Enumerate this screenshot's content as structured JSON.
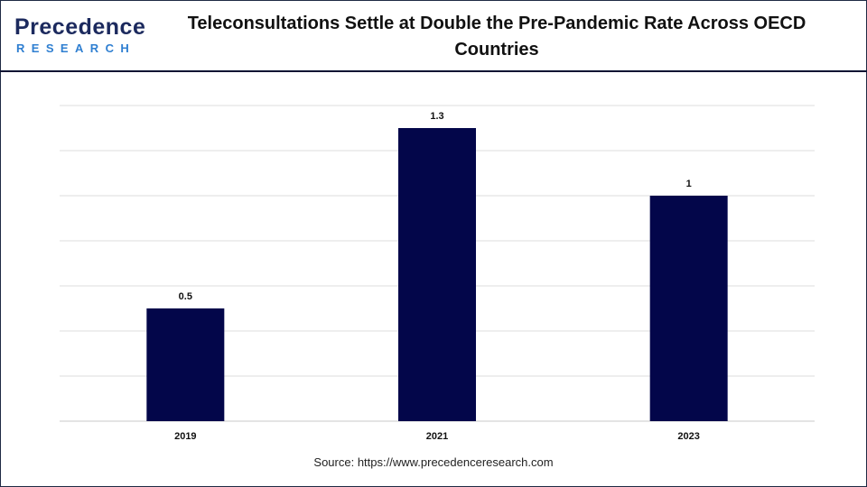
{
  "brand": {
    "logo_top": "Precedence",
    "logo_bottom": "RESEARCH"
  },
  "chart_data": {
    "type": "bar",
    "title": "Teleconsultations Settle at Double the Pre-Pandemic Rate Across OECD Countries",
    "categories": [
      "2019",
      "2021",
      "2023"
    ],
    "values": [
      0.5,
      1.3,
      1
    ],
    "data_labels": [
      "0.5",
      "1.3",
      "1"
    ],
    "xlabel": "",
    "ylabel": "",
    "ylim": [
      0,
      1.4
    ],
    "grid": true,
    "legend": "none",
    "bar_color": "#03064a",
    "source": "Source: https://www.precedenceresearch.com"
  }
}
